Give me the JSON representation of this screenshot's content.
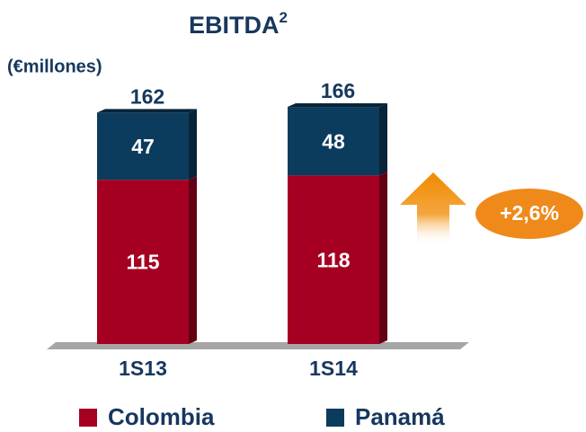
{
  "chart_data": {
    "type": "stacked_bar",
    "title": "EBITDA",
    "title_superscript": "2",
    "subtitle": "(€millones)",
    "categories": [
      "1S13",
      "1S14"
    ],
    "series": [
      {
        "name": "Colombia",
        "color": "#a50021",
        "values": [
          115,
          118
        ]
      },
      {
        "name": "Panamá",
        "color": "#0b3c5d",
        "values": [
          47,
          48
        ]
      }
    ],
    "totals": [
      162,
      166
    ],
    "annotation": "+2,6%"
  }
}
